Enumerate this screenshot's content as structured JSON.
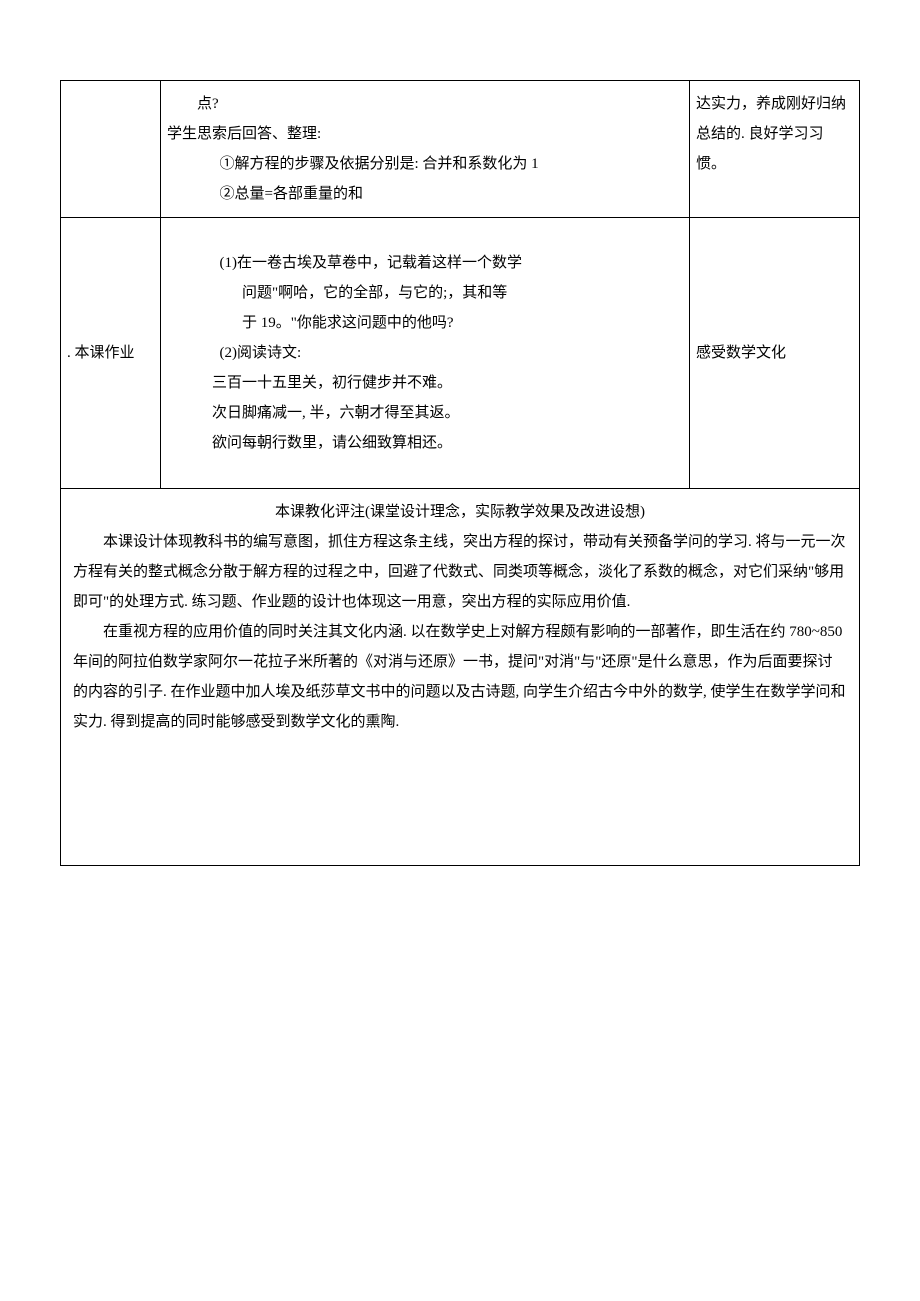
{
  "row1": {
    "content": {
      "line1": "点?",
      "line2": "学生思索后回答、整理:",
      "line3": "①解方程的步骤及依据分别是: 合并和系数化为 1",
      "line4": "②总量=各部重量的和"
    },
    "note": {
      "l1": "达实力，养成刚好归纳",
      "l2": "总结的. 良好学习习",
      "l3": "惯。"
    }
  },
  "row2": {
    "label": ". 本课作业",
    "content": {
      "q1_l1": "(1)在一卷古埃及草卷中，记载着这样一个数学",
      "q1_l2": "问题\"啊哈，它的全部，与它的;，其和等",
      "q1_l3": "于 19。\"你能求这问题中的他吗?",
      "q2_l1": "(2)阅读诗文:",
      "poem_l1": "三百一十五里关，初行健步并不难。",
      "poem_l2": "次日脚痛减一, 半，六朝才得至其返。",
      "poem_l3": "欲问每朝行数里，请公细致算相还。"
    },
    "note": "感受数学文化"
  },
  "row3": {
    "header": "本课教化评注(课堂设计理念，实际教学效果及改进设想)",
    "p1": "本课设计体现教科书的编写意图，抓住方程这条主线，突出方程的探讨，带动有关预备学问的学习. 将与一元一次方程有关的整式概念分散于解方程的过程之中，回避了代数式、同类项等概念，淡化了系数的概念，对它们采纳\"够用即可\"的处理方式. 练习题、作业题的设计也体现这一用意，突出方程的实际应用价值.",
    "p2": "在重视方程的应用价值的同时关注其文化内涵. 以在数学史上对解方程颇有影响的一部著作，即生活在约 780~850 年间的阿拉伯数学家阿尔一花拉子米所著的《对消与还原》一书，提问\"对消\"与\"还原\"是什么意思，作为后面要探讨的内容的引子. 在作业题中加人埃及纸莎草文书中的问题以及古诗题, 向学生介绍古今中外的数学, 使学生在数学学问和实力. 得到提高的同时能够感受到数学文化的熏陶."
  }
}
